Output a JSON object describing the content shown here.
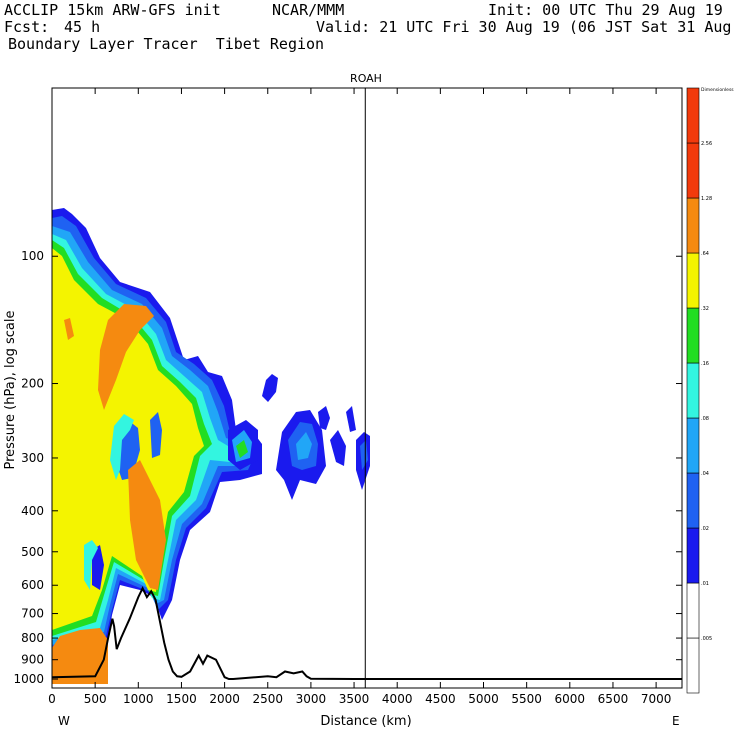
{
  "header": {
    "model": "ACCLIP 15km ARW-GFS init",
    "org": "NCAR/MMM",
    "init": "Init: 00 UTC Thu 29 Aug 19",
    "fcst_label": "Fcst:",
    "fcst_value": "45 h",
    "valid": "Valid: 21 UTC Fri 30 Aug 19 (06 JST Sat 31 Aug 19)",
    "product": "Boundary Layer Tracer  Tibet Region"
  },
  "colors": {
    "blue_dark": "#1a1aee",
    "blue_mid": "#1f62f2",
    "blue_light": "#21a6f7",
    "cyan": "#33f5e0",
    "green": "#22dd22",
    "yellow": "#f4f400",
    "orange": "#f58a10",
    "red_orange": "#f23a0c"
  },
  "chart_data": {
    "type": "heatmap",
    "title": "ROAH",
    "xlabel": "Distance (km)",
    "ylabel": "Pressure (hPa), log scale",
    "xlim": [
      0,
      7300
    ],
    "ylim": [
      1050,
      40
    ],
    "x_ticks": [
      0,
      500,
      1000,
      1500,
      2000,
      2500,
      3000,
      3500,
      4000,
      4500,
      5000,
      5500,
      6000,
      6500,
      7000
    ],
    "y_ticks": [
      100,
      200,
      300,
      400,
      500,
      600,
      700,
      800,
      900,
      1000
    ],
    "x_end_labels": {
      "left": "W",
      "right": "E"
    },
    "marker_line_x_km": 3630,
    "colorbar": {
      "title": "Dimensionless",
      "levels": [
        ".005",
        ".01",
        ".02",
        ".04",
        ".08",
        ".16",
        ".32",
        ".64",
        "1.28",
        "2.56"
      ],
      "colors": [
        "#ffffff",
        "#1a1aee",
        "#1f62f2",
        "#21a6f7",
        "#33f5e0",
        "#22dd22",
        "#f4f400",
        "#f58a10",
        "#f23a0c",
        "#f23a0c"
      ]
    },
    "terrain": {
      "x": [
        0,
        500,
        600,
        650,
        700,
        720,
        750,
        800,
        900,
        1000,
        1050,
        1100,
        1150,
        1200,
        1300,
        1350,
        1400,
        1450,
        1500,
        1600,
        1700,
        1750,
        1800,
        1900,
        2000,
        2050,
        2100,
        2500,
        2600,
        2700,
        2800,
        2900,
        2950,
        3000,
        3500,
        3600,
        3700,
        4000,
        7300
      ],
      "p": [
        990,
        985,
        900,
        800,
        720,
        750,
        850,
        800,
        720,
        640,
        610,
        640,
        620,
        650,
        820,
        900,
        960,
        985,
        988,
        960,
        880,
        920,
        880,
        900,
        990,
        1000,
        1000,
        985,
        990,
        960,
        970,
        960,
        985,
        998,
        1000,
        1000,
        1000,
        1000,
        1000
      ]
    }
  }
}
